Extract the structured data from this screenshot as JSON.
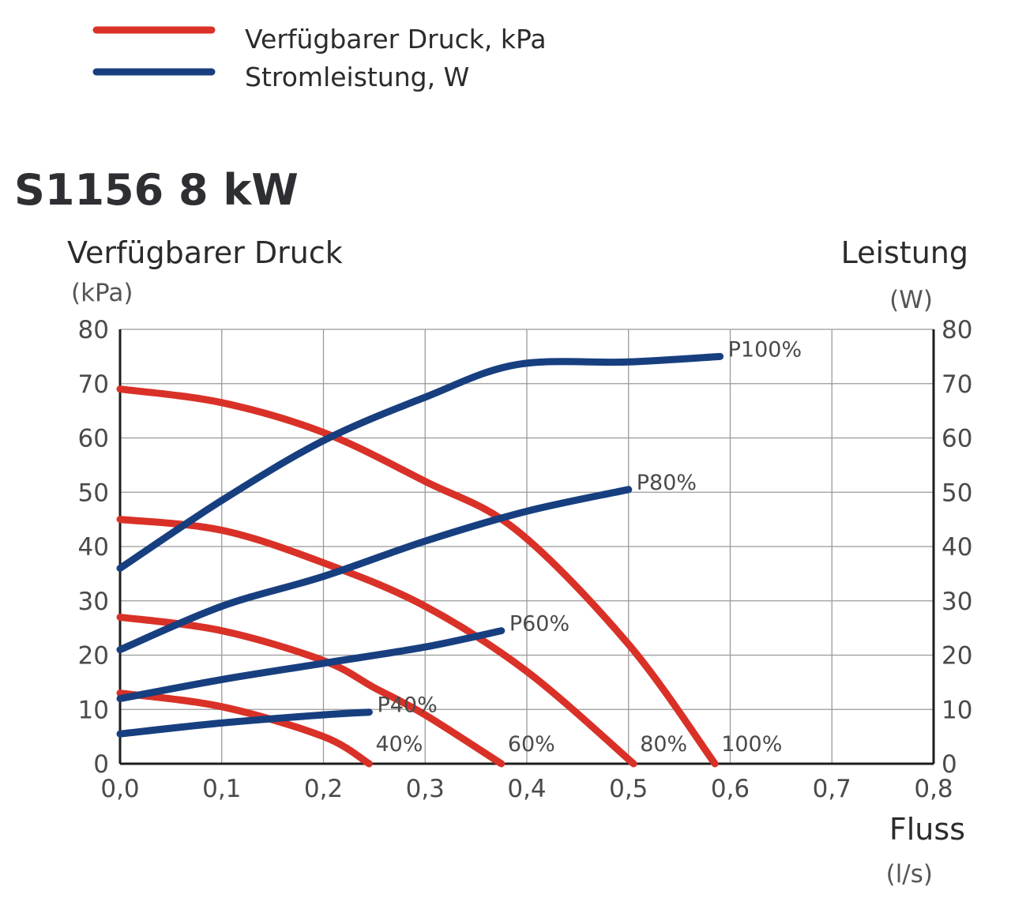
{
  "legend": [
    {
      "label": "Verfügbarer Druck, kPa",
      "color": "#d93127"
    },
    {
      "label": "Stromleistung, W",
      "color": "#173f80"
    }
  ],
  "chart_data": {
    "type": "line",
    "title": "S1156 8 kW",
    "xlabel": "Fluss",
    "xunit": "(l/s)",
    "ylabel_left": "Verfügbarer Druck",
    "yunit_left": "(kPa)",
    "ylabel_right": "Leistung",
    "yunit_right": "(W)",
    "xlim": [
      0,
      0.8
    ],
    "ylim": [
      0,
      80
    ],
    "ylim_right": [
      0,
      80
    ],
    "x_ticks": [
      "0,0",
      "0,1",
      "0,2",
      "0,3",
      "0,4",
      "0,5",
      "0,6",
      "0,7",
      "0,8"
    ],
    "y_ticks": [
      "0",
      "10",
      "20",
      "30",
      "40",
      "50",
      "60",
      "70",
      "80"
    ],
    "y_ticks_right": [
      "0",
      "10",
      "20",
      "30",
      "40",
      "50",
      "60",
      "70",
      "80"
    ],
    "grid": true,
    "legend_position": "top-left",
    "series": [
      {
        "name": "100%",
        "kind": "pressure",
        "color": "#d93127",
        "x": [
          0,
          0.1,
          0.2,
          0.3,
          0.39,
          0.5,
          0.585
        ],
        "y": [
          69,
          66.5,
          61,
          52,
          43,
          22,
          0
        ]
      },
      {
        "name": "80%",
        "kind": "pressure",
        "color": "#d93127",
        "x": [
          0,
          0.1,
          0.2,
          0.3,
          0.4,
          0.505
        ],
        "y": [
          45,
          43,
          37,
          29,
          17,
          0
        ]
      },
      {
        "name": "60%",
        "kind": "pressure",
        "color": "#d93127",
        "x": [
          0,
          0.1,
          0.2,
          0.25,
          0.3,
          0.375
        ],
        "y": [
          27,
          24.5,
          19,
          14,
          9,
          0
        ]
      },
      {
        "name": "40%",
        "kind": "pressure",
        "color": "#d93127",
        "x": [
          0,
          0.1,
          0.2,
          0.245
        ],
        "y": [
          13,
          10.5,
          5,
          0
        ]
      },
      {
        "name": "P100%",
        "kind": "power",
        "color": "#173f80",
        "x": [
          0,
          0.1,
          0.2,
          0.3,
          0.39,
          0.5,
          0.59
        ],
        "y": [
          36,
          48.5,
          59.5,
          67.5,
          73.5,
          74,
          75
        ]
      },
      {
        "name": "P80%",
        "kind": "power",
        "color": "#173f80",
        "x": [
          0,
          0.1,
          0.2,
          0.3,
          0.4,
          0.5
        ],
        "y": [
          21,
          29,
          34.5,
          41,
          46.5,
          50.5
        ]
      },
      {
        "name": "P60%",
        "kind": "power",
        "color": "#173f80",
        "x": [
          0,
          0.1,
          0.2,
          0.3,
          0.375
        ],
        "y": [
          12,
          15.5,
          18.5,
          21.5,
          24.5
        ]
      },
      {
        "name": "P40%",
        "kind": "power",
        "color": "#173f80",
        "x": [
          0,
          0.1,
          0.2,
          0.245
        ],
        "y": [
          5.5,
          7.5,
          9,
          9.5
        ]
      }
    ]
  }
}
